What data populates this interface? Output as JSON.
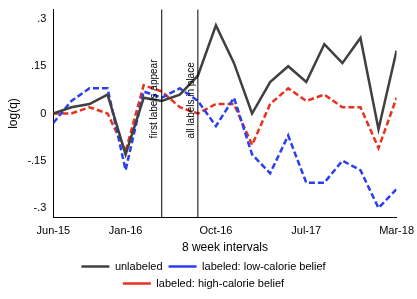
{
  "chart_data": {
    "type": "line",
    "x_label": "8 week intervals",
    "y_label": "log(q)",
    "categories": [
      "Jun-15",
      null,
      null,
      null,
      "Jan-16",
      null,
      null,
      null,
      null,
      "Oct-16",
      null,
      null,
      null,
      null,
      "Jul-17",
      null,
      null,
      null,
      null,
      "Mar-18"
    ],
    "series": [
      {
        "name": "unlabeled",
        "color": "#404040",
        "line_style": "solid",
        "values": [
          0.0,
          0.02,
          0.03,
          0.06,
          -0.13,
          0.05,
          0.04,
          0.06,
          0.12,
          0.28,
          0.16,
          0.0,
          0.1,
          0.15,
          0.1,
          0.22,
          0.16,
          0.24,
          -0.05,
          0.2
        ]
      },
      {
        "name": "labeled: low-calorie belief",
        "color": "#2a3ff0",
        "line_style": "dashed",
        "values": [
          -0.03,
          0.04,
          0.08,
          0.08,
          -0.18,
          0.07,
          0.05,
          0.08,
          0.04,
          -0.04,
          0.05,
          -0.13,
          -0.19,
          -0.07,
          -0.22,
          -0.22,
          -0.15,
          -0.18,
          -0.3,
          -0.24
        ]
      },
      {
        "name": "labeled: high-calorie belief",
        "color": "#e8311f",
        "line_style": "dashed",
        "values": [
          0.0,
          0.0,
          0.02,
          0.0,
          -0.12,
          0.09,
          0.07,
          0.02,
          0.0,
          0.03,
          0.03,
          -0.1,
          0.03,
          0.08,
          0.04,
          0.06,
          0.02,
          0.02,
          -0.11,
          0.05
        ]
      }
    ],
    "annotations": [
      {
        "text": "first labels appear",
        "at": 6
      },
      {
        "text": "all labels in place",
        "at": 8
      }
    ],
    "ylim": [
      -0.33,
      0.33
    ],
    "yticks": [
      {
        "value": -0.3,
        "label": "-.3"
      },
      {
        "value": -0.15,
        "label": "-.15"
      },
      0,
      {
        "value": 0.15,
        "label": ".15"
      },
      {
        "value": 0.3,
        "label": ".3"
      }
    ],
    "grid": false,
    "legend": "bottom"
  }
}
